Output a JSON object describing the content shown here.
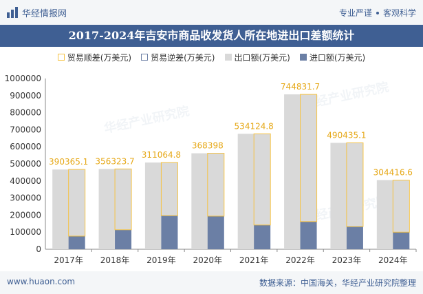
{
  "brand": {
    "name": "华经情报网",
    "tags": [
      "专业严谨",
      "客观科学"
    ]
  },
  "title": "2017-2024年吉安市商品收发货人所在地进出口差额统计",
  "legend": [
    {
      "label": "贸易顺差(万美元)",
      "key": "surplus"
    },
    {
      "label": "贸易逆差(万美元)",
      "key": "deficit"
    },
    {
      "label": "出口额(万美元)",
      "key": "export"
    },
    {
      "label": "进口额(万美元)",
      "key": "import"
    }
  ],
  "watermark": "华经产业研究院",
  "footer": {
    "left": "www.huaon.com",
    "right": "数据来源：中国海关，华经产业研究院整理"
  },
  "colors": {
    "accent": "#3f5f93",
    "export": "#d9d9d9",
    "import": "#6b7fa5",
    "surplus": "#f5c242",
    "surplus_label": "#e6a817"
  },
  "chart_data": {
    "type": "bar",
    "categories": [
      "2017年",
      "2018年",
      "2019年",
      "2020年",
      "2021年",
      "2022年",
      "2023年",
      "2024年"
    ],
    "series": [
      {
        "name": "出口额(万美元)",
        "values": [
          467000,
          470000,
          508000,
          562000,
          676000,
          907000,
          623000,
          405000
        ]
      },
      {
        "name": "进口额(万美元)",
        "values": [
          77000,
          114000,
          197000,
          194000,
          142000,
          162000,
          133000,
          100000
        ]
      },
      {
        "name": "贸易顺差(万美元)",
        "values": [
          390365.1,
          356323.7,
          311064.8,
          368398,
          534124.8,
          744831.7,
          490435.1,
          304416.6
        ]
      }
    ],
    "surplus_labels": [
      "390365.1",
      "356323.7",
      "311064.8",
      "368398",
      "534124.8",
      "744831.7",
      "490435.1",
      "304416.6"
    ],
    "yticks": [
      "0",
      "100000",
      "200000",
      "300000",
      "400000",
      "500000",
      "600000",
      "700000",
      "800000",
      "900000",
      "1000000"
    ],
    "ylim": [
      0,
      1000000
    ]
  }
}
